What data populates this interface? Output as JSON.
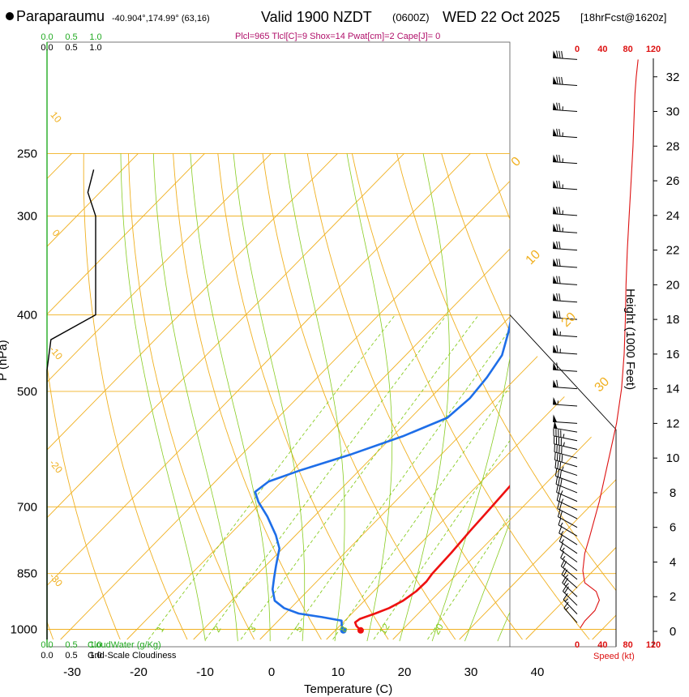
{
  "header": {
    "station": "Paraparaumu",
    "coords": "-40.904°,174.99° (63,16)",
    "valid": "Valid 1900 NZDT",
    "utc": "(0600Z)",
    "date": "WED 22 Oct 2025",
    "fcst": "[18hrFcst@1620z]",
    "indices": "Plcl=965 Tlcl[C]=9 Shox=14 Pwat[cm]=2 Cape[J]= 0"
  },
  "colors": {
    "isotherm": "#f0b020",
    "dry_adiabat": "#f0b020",
    "moist_adiabat": "#88cc22",
    "mixing_ratio": "#88cc22",
    "temperature": "#ee1111",
    "dewpoint": "#1e6ee8",
    "cloud": "#000000",
    "cloudwater": "#22aa22",
    "speed": "#dd1111"
  },
  "chart_data": {
    "type": "line",
    "title": "Paraparaumu Valid 1900 NZDT (0600Z) WED 22 Oct 2025",
    "xlabel": "Temperature (C)",
    "ylabel": "P (hPa)",
    "xlim": [
      -35,
      42
    ],
    "ylim": [
      1030,
      250
    ],
    "x_ticks": [
      "-30",
      "-20",
      "-10",
      "0",
      "10",
      "20",
      "30",
      "40"
    ],
    "x_tick_values": [
      -30,
      -20,
      -10,
      0,
      10,
      20,
      30,
      40
    ],
    "pressure_ticks": [
      "250",
      "300",
      "400",
      "500",
      "700",
      "850",
      "1000"
    ],
    "pressure_tick_values": [
      250,
      300,
      400,
      500,
      700,
      850,
      1000
    ],
    "series": [
      {
        "name": "Temperature",
        "points": [
          [
            13.8,
            1003
          ],
          [
            12.5,
            990
          ],
          [
            11.8,
            980
          ],
          [
            12.0,
            970
          ],
          [
            13.5,
            955
          ],
          [
            14.8,
            940
          ],
          [
            15.8,
            920
          ],
          [
            16.4,
            895
          ],
          [
            16.5,
            870
          ],
          [
            16.2,
            850
          ],
          [
            16.0,
            800
          ],
          [
            15.6,
            750
          ],
          [
            15.3,
            700
          ],
          [
            15.0,
            660
          ],
          [
            14.7,
            630
          ],
          [
            13.8,
            600
          ],
          [
            12.0,
            560
          ],
          [
            9.8,
            520
          ],
          [
            8.0,
            490
          ],
          [
            5.6,
            450
          ],
          [
            3.5,
            420
          ],
          [
            1.5,
            390
          ],
          [
            -1.0,
            360
          ],
          [
            -4.0,
            330
          ],
          [
            -7.5,
            300
          ],
          [
            -11.5,
            275
          ],
          [
            -15.5,
            262
          ]
        ]
      },
      {
        "name": "Dewpoint",
        "points": [
          [
            11.2,
            1003
          ],
          [
            10.3,
            990
          ],
          [
            9.5,
            975
          ],
          [
            6.0,
            965
          ],
          [
            2.0,
            955
          ],
          [
            -1.0,
            940
          ],
          [
            -3.5,
            920
          ],
          [
            -5.5,
            890
          ],
          [
            -7.0,
            860
          ],
          [
            -8.5,
            830
          ],
          [
            -10.5,
            790
          ],
          [
            -13.0,
            760
          ],
          [
            -17.0,
            720
          ],
          [
            -20.5,
            690
          ],
          [
            -22.5,
            670
          ],
          [
            -22.0,
            650
          ],
          [
            -19.0,
            630
          ],
          [
            -13.5,
            600
          ],
          [
            -8.5,
            570
          ],
          [
            -4.5,
            540
          ],
          [
            -4.0,
            510
          ],
          [
            -4.5,
            480
          ],
          [
            -5.5,
            450
          ],
          [
            -8.0,
            420
          ],
          [
            -11.0,
            390
          ],
          [
            -14.5,
            360
          ],
          [
            -18.5,
            330
          ],
          [
            -22.5,
            300
          ],
          [
            -26.5,
            275
          ],
          [
            -29.5,
            262
          ]
        ]
      }
    ],
    "surface": {
      "temperature": 13.8,
      "dewpoint": 11.2,
      "pressure": 1003
    },
    "height_axis": {
      "label": "Height (1000 Feet)",
      "ticks": [
        "0",
        "2",
        "4",
        "6",
        "8",
        "10",
        "12",
        "14",
        "16",
        "18",
        "20",
        "22",
        "24",
        "26",
        "28",
        "30",
        "32"
      ],
      "tick_values": [
        0,
        2,
        4,
        6,
        8,
        10,
        12,
        14,
        16,
        18,
        20,
        22,
        24,
        26,
        28,
        30,
        32
      ],
      "max": 34
    },
    "wind_speed_axis": {
      "label": "Speed (kt)",
      "ticks": [
        "0",
        "40",
        "80",
        "120"
      ],
      "tick_values": [
        0,
        40,
        80,
        120
      ],
      "max": 120,
      "profile": [
        [
          5,
          0.2
        ],
        [
          12,
          0.6
        ],
        [
          28,
          1.2
        ],
        [
          35,
          1.8
        ],
        [
          30,
          2.3
        ],
        [
          12,
          2.8
        ],
        [
          9,
          3.5
        ],
        [
          12,
          4.5
        ],
        [
          20,
          5.5
        ],
        [
          35,
          7.5
        ],
        [
          50,
          10
        ],
        [
          62,
          12
        ],
        [
          70,
          14
        ],
        [
          74,
          16
        ],
        [
          76,
          18
        ],
        [
          77,
          20
        ],
        [
          79,
          22
        ],
        [
          82,
          24
        ],
        [
          85,
          26
        ],
        [
          88,
          28
        ],
        [
          89,
          29
        ],
        [
          90,
          30
        ],
        [
          91,
          31
        ],
        [
          93,
          32
        ],
        [
          96,
          33
        ]
      ]
    },
    "wind_barbs": [
      {
        "h": 0.5,
        "kt": 15
      },
      {
        "h": 1.0,
        "kt": 15
      },
      {
        "h": 1.5,
        "kt": 20
      },
      {
        "h": 2.0,
        "kt": 25
      },
      {
        "h": 2.5,
        "kt": 25
      },
      {
        "h": 3.0,
        "kt": 20
      },
      {
        "h": 3.5,
        "kt": 15
      },
      {
        "h": 4.0,
        "kt": 15
      },
      {
        "h": 4.5,
        "kt": 15
      },
      {
        "h": 5.0,
        "kt": 15
      },
      {
        "h": 5.5,
        "kt": 15
      },
      {
        "h": 6.0,
        "kt": 20
      },
      {
        "h": 6.5,
        "kt": 20
      },
      {
        "h": 7.0,
        "kt": 25
      },
      {
        "h": 7.5,
        "kt": 25
      },
      {
        "h": 8.0,
        "kt": 30
      },
      {
        "h": 8.5,
        "kt": 30
      },
      {
        "h": 9.0,
        "kt": 35
      },
      {
        "h": 9.5,
        "kt": 40
      },
      {
        "h": 10.0,
        "kt": 40
      },
      {
        "h": 10.5,
        "kt": 45
      },
      {
        "h": 11.0,
        "kt": 45
      },
      {
        "h": 11.5,
        "kt": 50
      },
      {
        "h": 12.0,
        "kt": 50
      },
      {
        "h": 13.0,
        "kt": 55
      },
      {
        "h": 14.0,
        "kt": 60
      },
      {
        "h": 15.0,
        "kt": 60
      },
      {
        "h": 16.0,
        "kt": 65
      },
      {
        "h": 17.0,
        "kt": 65
      },
      {
        "h": 18.0,
        "kt": 70
      },
      {
        "h": 19.0,
        "kt": 70
      },
      {
        "h": 20.0,
        "kt": 70
      },
      {
        "h": 21.0,
        "kt": 70
      },
      {
        "h": 22.0,
        "kt": 70
      },
      {
        "h": 23.0,
        "kt": 75
      },
      {
        "h": 24.0,
        "kt": 75
      },
      {
        "h": 25.5,
        "kt": 75
      },
      {
        "h": 27.0,
        "kt": 75
      },
      {
        "h": 28.5,
        "kt": 75
      },
      {
        "h": 30.0,
        "kt": 75
      },
      {
        "h": 31.5,
        "kt": 80
      },
      {
        "h": 33.0,
        "kt": 80
      }
    ],
    "cloud_profile": [
      [
        0.0,
        1030
      ],
      [
        0.0,
        470
      ],
      [
        0.04,
        430
      ],
      [
        0.5,
        400
      ],
      [
        0.5,
        320
      ],
      [
        0.5,
        300
      ],
      [
        0.42,
        280
      ],
      [
        0.48,
        262
      ]
    ],
    "cloud_axis": {
      "cloudwater_label": "CloudWater (g/Kg)",
      "cloudiness_label": "Grid-Scale Cloudiness",
      "cloudwater_ticks": [
        "0.0",
        "0.5",
        "1.0"
      ],
      "cloudiness_ticks": [
        "0.0",
        "0.5",
        "1.0"
      ]
    },
    "isotherm_labels": [
      "0",
      "10",
      "20",
      "30"
    ],
    "dry_adiabat_labels": [
      "10",
      "0",
      "-10",
      "-20",
      "-30"
    ],
    "mixing_ratio_labels": [
      "1",
      "2",
      "3",
      "5",
      "8",
      "12",
      "20"
    ],
    "mixing_ratio_values": [
      1,
      2,
      3,
      5,
      8,
      12,
      20
    ],
    "dry_adiabats_K": [
      230,
      240,
      250,
      260,
      270,
      280,
      290,
      300,
      310,
      320,
      330,
      340,
      350,
      360,
      370,
      380,
      390,
      400,
      410,
      420,
      430,
      440,
      450,
      460,
      470
    ],
    "moist_adiabats_C": [
      -10,
      -5,
      0,
      5,
      10,
      15,
      20,
      25,
      30,
      35
    ]
  }
}
